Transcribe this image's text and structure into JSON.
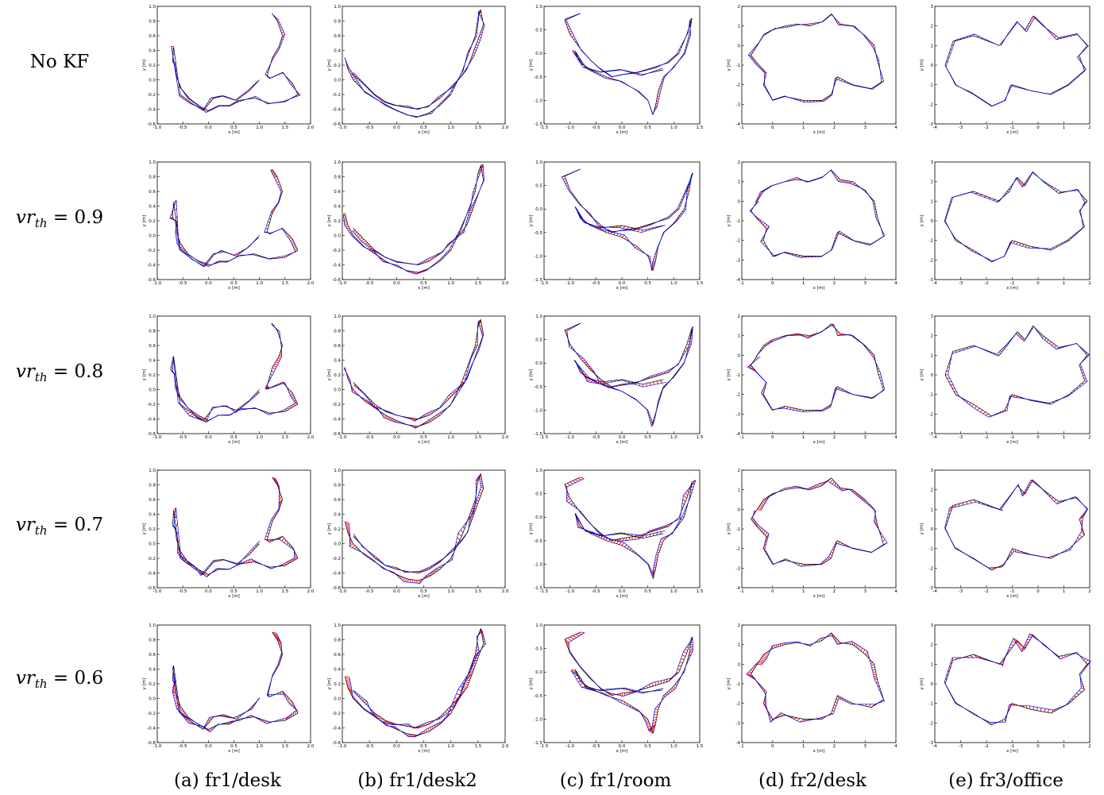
{
  "row_labels": [
    "No KF",
    "vr_th = 0.9",
    "vr_th = 0.8",
    "vr_th = 0.7",
    "vr_th = 0.6"
  ],
  "column_captions": [
    "(a) fr1/desk",
    "(b) fr1/desk2",
    "(c) fr1/room",
    "(d) fr2/desk",
    "(e) fr3/office"
  ],
  "colors": {
    "ground_truth": "#000000",
    "estimate": "#0000ff",
    "difference": "#ff0000"
  },
  "chart_data": [
    {
      "type": "line",
      "dataset": "fr1/desk",
      "xlabel": "x [m]",
      "ylabel": "y [m]",
      "xlim": [
        -1.0,
        2.0
      ],
      "ylim": [
        -0.6,
        1.0
      ],
      "xticks": [
        "-1.0",
        "-0.5",
        "0.0",
        "0.5",
        "1.0",
        "1.5",
        "2.0"
      ],
      "yticks": [
        "-0.6",
        "-0.4",
        "-0.2",
        "0.0",
        "0.2",
        "0.4",
        "0.6",
        "0.8",
        "1.0"
      ],
      "series": [
        {
          "x": [
            1.25,
            1.35,
            1.45,
            1.38,
            1.25,
            1.15,
            1.2,
            1.45,
            1.65,
            1.75,
            1.5,
            1.2,
            0.9,
            0.6,
            0.4,
            0.2,
            0.0,
            -0.2,
            -0.4,
            -0.55,
            -0.62,
            -0.65,
            -0.7,
            -0.68,
            -0.55,
            -0.3,
            -0.1,
            0.1,
            0.3,
            0.55,
            0.8,
            1.0
          ],
          "y": [
            0.9,
            0.8,
            0.6,
            0.45,
            0.3,
            0.05,
            0.02,
            0.1,
            -0.05,
            -0.2,
            -0.3,
            -0.32,
            -0.25,
            -0.28,
            -0.35,
            -0.35,
            -0.42,
            -0.35,
            -0.25,
            -0.1,
            0.05,
            0.2,
            0.25,
            0.45,
            -0.2,
            -0.33,
            -0.42,
            -0.25,
            -0.22,
            -0.28,
            -0.15,
            0.0
          ]
        }
      ]
    },
    {
      "type": "line",
      "dataset": "fr1/desk2",
      "xlabel": "x [m]",
      "ylabel": "y [m]",
      "xlim": [
        -1.0,
        2.0
      ],
      "ylim": [
        -0.6,
        1.0
      ],
      "xticks": [
        "-1.0",
        "-0.5",
        "0.0",
        "0.5",
        "1.0",
        "1.5",
        "2.0"
      ],
      "yticks": [
        "-0.6",
        "-0.4",
        "-0.2",
        "0.0",
        "0.2",
        "0.4",
        "0.6",
        "0.8",
        "1.0"
      ],
      "series": [
        {
          "x": [
            -0.95,
            -0.9,
            -0.8,
            -0.6,
            -0.4,
            -0.2,
            0.0,
            0.2,
            0.4,
            0.6,
            0.8,
            1.0,
            1.2,
            1.35,
            1.45,
            1.5,
            1.55,
            1.6,
            1.5,
            1.4,
            1.3,
            1.2,
            1.0,
            0.8,
            0.6,
            0.4,
            0.2,
            0.0,
            -0.2,
            -0.4,
            -0.6,
            -0.8
          ],
          "y": [
            0.3,
            0.15,
            0.0,
            -0.15,
            -0.25,
            -0.35,
            -0.42,
            -0.48,
            -0.5,
            -0.45,
            -0.35,
            -0.2,
            0.1,
            0.4,
            0.6,
            0.85,
            0.95,
            0.75,
            0.55,
            0.35,
            0.15,
            0.05,
            -0.1,
            -0.25,
            -0.35,
            -0.4,
            -0.38,
            -0.35,
            -0.3,
            -0.2,
            -0.05,
            0.1
          ]
        }
      ]
    },
    {
      "type": "line",
      "dataset": "fr1/room",
      "xlabel": "x [m]",
      "ylabel": "y [m]",
      "xlim": [
        -1.5,
        1.5
      ],
      "ylim": [
        -1.5,
        1.0
      ],
      "xticks": [
        "-1.5",
        "-1.0",
        "-0.5",
        "0.0",
        "0.5",
        "1.0",
        "1.5"
      ],
      "yticks": [
        "-1.5",
        "-1.0",
        "-0.5",
        "0.0",
        "0.5",
        "1.0"
      ],
      "series": [
        {
          "x": [
            -0.8,
            -1.1,
            -1.0,
            -0.8,
            -0.6,
            -0.4,
            -0.2,
            0.0,
            0.3,
            0.6,
            0.9,
            1.1,
            1.25,
            1.35,
            1.3,
            1.2,
            1.0,
            0.8,
            0.7,
            0.65,
            0.6,
            0.5,
            0.3,
            0.0,
            -0.3,
            -0.6,
            -0.8,
            -0.9,
            -0.7,
            -0.4,
            0.0,
            0.4,
            0.8
          ],
          "y": [
            0.85,
            0.7,
            0.4,
            0.1,
            -0.15,
            -0.35,
            -0.5,
            -0.45,
            -0.4,
            -0.3,
            -0.2,
            0.0,
            0.4,
            0.75,
            0.4,
            0.0,
            -0.3,
            -0.5,
            -0.8,
            -1.1,
            -1.3,
            -1.0,
            -0.8,
            -0.6,
            -0.5,
            -0.35,
            -0.2,
            0.05,
            -0.3,
            -0.4,
            -0.35,
            -0.45,
            -0.35
          ]
        }
      ]
    },
    {
      "type": "line",
      "dataset": "fr2/desk",
      "xlabel": "x [m]",
      "ylabel": "y [m]",
      "xlim": [
        -1,
        4
      ],
      "ylim": [
        -4,
        2
      ],
      "xticks": [
        "-1",
        "0",
        "1",
        "2",
        "3",
        "4"
      ],
      "yticks": [
        "-4",
        "-3",
        "-2",
        "-1",
        "0",
        "1",
        "2"
      ],
      "series": [
        {
          "x": [
            -0.5,
            -0.3,
            0.0,
            0.4,
            0.8,
            1.2,
            1.6,
            1.9,
            2.2,
            2.6,
            3.0,
            3.3,
            3.4,
            3.6,
            3.2,
            2.6,
            2.1,
            1.9,
            1.6,
            1.0,
            0.4,
            0.0,
            -0.3,
            -0.2,
            -0.5,
            -0.7,
            -0.5
          ],
          "y": [
            0.0,
            0.5,
            0.8,
            1.0,
            1.1,
            1.0,
            1.2,
            1.6,
            1.1,
            1.0,
            0.5,
            0.0,
            -0.8,
            -1.8,
            -2.2,
            -2.0,
            -1.6,
            -2.5,
            -2.8,
            -2.8,
            -2.6,
            -2.8,
            -2.0,
            -1.4,
            -0.9,
            -0.5,
            0.0
          ]
        }
      ]
    },
    {
      "type": "line",
      "dataset": "fr3/office",
      "xlabel": "x [m]",
      "ylabel": "y [m]",
      "xlim": [
        -4,
        2
      ],
      "ylim": [
        -3,
        3
      ],
      "xticks": [
        "-4",
        "-3",
        "-2",
        "-1",
        "0",
        "1",
        "2"
      ],
      "yticks": [
        "-3",
        "-2",
        "-1",
        "0",
        "1",
        "2",
        "3"
      ],
      "series": [
        {
          "x": [
            -1.5,
            -2.5,
            -3.3,
            -3.6,
            -3.2,
            -2.5,
            -1.8,
            -1.3,
            -1.0,
            -0.3,
            0.5,
            1.2,
            1.8,
            1.6,
            1.9,
            1.5,
            0.8,
            0.2,
            -0.2,
            -0.5,
            -0.8,
            -1.2,
            -1.5
          ],
          "y": [
            1.0,
            1.5,
            1.2,
            0.0,
            -1.0,
            -1.5,
            -2.1,
            -1.8,
            -1.0,
            -1.3,
            -1.5,
            -1.0,
            -0.3,
            0.5,
            1.0,
            1.6,
            1.4,
            2.0,
            2.5,
            1.8,
            2.2,
            1.5,
            1.0
          ]
        }
      ]
    }
  ]
}
